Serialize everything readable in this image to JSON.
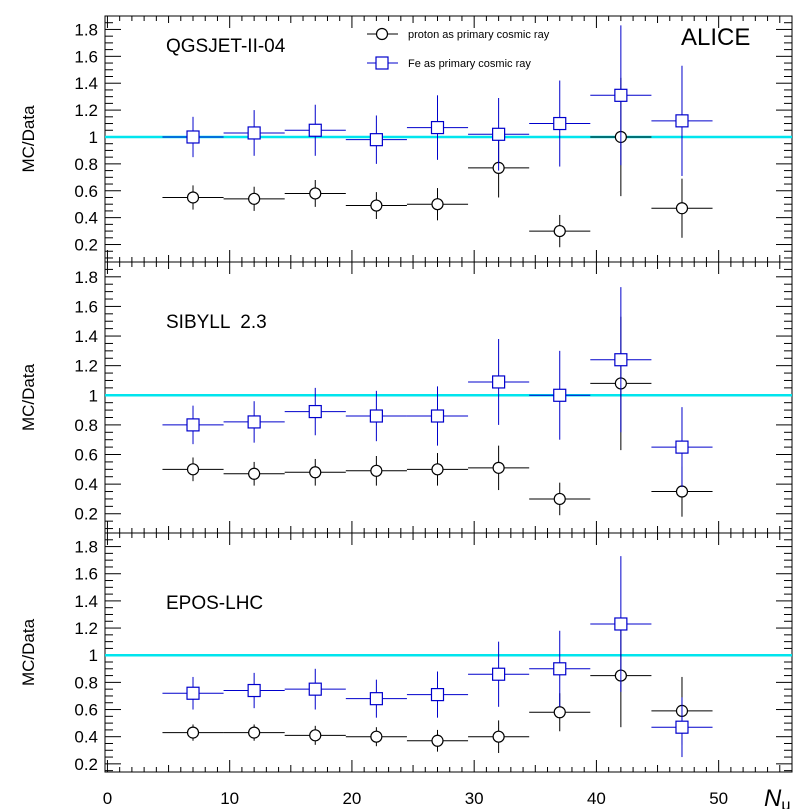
{
  "experiment_label": "ALICE",
  "legend": [
    {
      "label": "proton as primary cosmic ray",
      "marker": "circle",
      "color": "#000000"
    },
    {
      "label": "Fe as primary cosmic ray",
      "marker": "square",
      "color": "#0000cc"
    }
  ],
  "colors": {
    "proton": "#000000",
    "fe": "#0000cc",
    "reference_line": "#00e5ee"
  },
  "x_axis": {
    "label_main": "N",
    "label_sub": "μ",
    "ticks": [
      "0",
      "10",
      "20",
      "30",
      "40",
      "50"
    ]
  },
  "chart_data": [
    {
      "type": "scatter",
      "panel_label": "QGSJET-II-04",
      "ylabel": "MC/Data",
      "xlim": [
        -0.2,
        56
      ],
      "ylim": [
        0.07,
        1.9
      ],
      "yticks": [
        "0.2",
        "0.4",
        "0.6",
        "0.8",
        "1",
        "1.2",
        "1.4",
        "1.6",
        "1.8"
      ],
      "reference_line": 1,
      "series": [
        {
          "name": "proton as primary cosmic ray",
          "marker": "circle",
          "x": [
            7,
            12,
            17,
            22,
            27,
            32,
            37,
            42,
            47
          ],
          "y": [
            0.55,
            0.54,
            0.58,
            0.49,
            0.5,
            0.77,
            0.3,
            1.0,
            0.47
          ],
          "yerr": [
            0.09,
            0.09,
            0.1,
            0.1,
            0.12,
            0.22,
            0.12,
            0.44,
            0.22
          ]
        },
        {
          "name": "Fe as primary cosmic ray",
          "marker": "square",
          "x": [
            7,
            12,
            17,
            22,
            27,
            32,
            37,
            42,
            47
          ],
          "y": [
            1.0,
            1.03,
            1.05,
            0.98,
            1.07,
            1.02,
            1.1,
            1.31,
            1.12
          ],
          "yerr": [
            0.15,
            0.17,
            0.19,
            0.18,
            0.24,
            0.27,
            0.32,
            0.52,
            0.41
          ]
        }
      ]
    },
    {
      "type": "scatter",
      "panel_label": "SIBYLL  2.3",
      "ylabel": "MC/Data",
      "xlim": [
        -0.2,
        56
      ],
      "ylim": [
        0.07,
        1.9
      ],
      "yticks": [
        "0.2",
        "0.4",
        "0.6",
        "0.8",
        "1",
        "1.2",
        "1.4",
        "1.6",
        "1.8"
      ],
      "reference_line": 1,
      "series": [
        {
          "name": "proton as primary cosmic ray",
          "marker": "circle",
          "x": [
            7,
            12,
            17,
            22,
            27,
            32,
            37,
            42,
            47
          ],
          "y": [
            0.5,
            0.47,
            0.48,
            0.49,
            0.5,
            0.51,
            0.3,
            1.08,
            0.35
          ],
          "yerr": [
            0.08,
            0.08,
            0.09,
            0.1,
            0.11,
            0.15,
            0.11,
            0.45,
            0.17
          ]
        },
        {
          "name": "Fe as primary cosmic ray",
          "marker": "square",
          "x": [
            7,
            12,
            17,
            22,
            27,
            32,
            37,
            42,
            47
          ],
          "y": [
            0.8,
            0.82,
            0.89,
            0.86,
            0.86,
            1.09,
            1.0,
            1.24,
            0.65
          ],
          "yerr": [
            0.13,
            0.14,
            0.16,
            0.17,
            0.2,
            0.29,
            0.3,
            0.49,
            0.27
          ]
        }
      ]
    },
    {
      "type": "scatter",
      "panel_label": "EPOS-LHC",
      "ylabel": "MC/Data",
      "xlim": [
        -0.2,
        56
      ],
      "ylim": [
        0.14,
        1.9
      ],
      "yticks": [
        "0.2",
        "0.4",
        "0.6",
        "0.8",
        "1",
        "1.2",
        "1.4",
        "1.6",
        "1.8"
      ],
      "reference_line": 1,
      "series": [
        {
          "name": "proton as primary cosmic ray",
          "marker": "circle",
          "x": [
            7,
            12,
            17,
            22,
            27,
            32,
            37,
            42,
            47
          ],
          "y": [
            0.43,
            0.43,
            0.41,
            0.4,
            0.37,
            0.4,
            0.58,
            0.85,
            0.59
          ],
          "yerr": [
            0.06,
            0.06,
            0.07,
            0.07,
            0.08,
            0.12,
            0.14,
            0.38,
            0.25
          ]
        },
        {
          "name": "Fe as primary cosmic ray",
          "marker": "square",
          "x": [
            7,
            12,
            17,
            22,
            27,
            32,
            37,
            42,
            47
          ],
          "y": [
            0.72,
            0.74,
            0.75,
            0.68,
            0.71,
            0.86,
            0.9,
            1.23,
            0.47
          ],
          "yerr": [
            0.12,
            0.13,
            0.15,
            0.14,
            0.17,
            0.24,
            0.28,
            0.5,
            0.22
          ]
        }
      ]
    }
  ]
}
